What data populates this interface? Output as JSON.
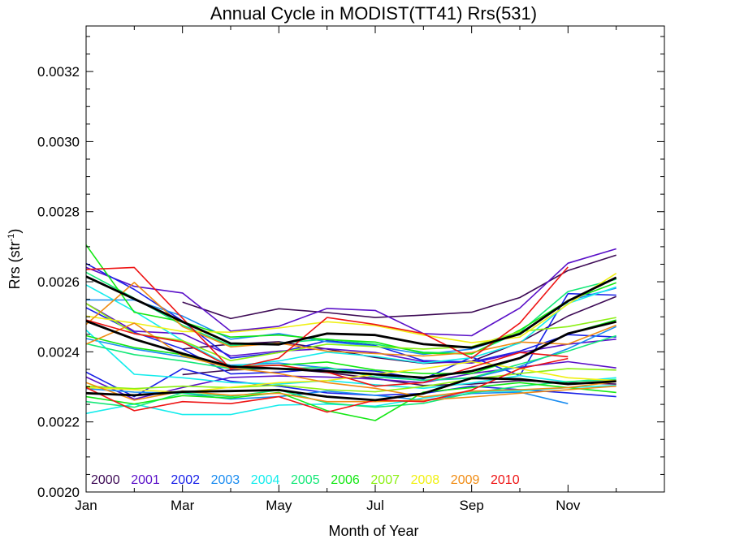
{
  "chart_data": {
    "type": "line",
    "title": "Annual Cycle in MODIST(TT41) Rrs(531)",
    "xlabel": "Month of Year",
    "ylabel": "Rrs (str",
    "ylabel_sup": "-1",
    "ylabel_end": ")",
    "xlim": [
      1,
      13
    ],
    "ylim": [
      0.002,
      0.00333
    ],
    "x_ticks": [
      {
        "v": 1,
        "label": "Jan"
      },
      {
        "v": 3,
        "label": "Mar"
      },
      {
        "v": 5,
        "label": "May"
      },
      {
        "v": 7,
        "label": "Jul"
      },
      {
        "v": 9,
        "label": "Sep"
      },
      {
        "v": 11,
        "label": "Nov"
      }
    ],
    "y_ticks": [
      {
        "v": 0.002,
        "label": "0.0020"
      },
      {
        "v": 0.0022,
        "label": "0.0022"
      },
      {
        "v": 0.0024,
        "label": "0.0024"
      },
      {
        "v": 0.0026,
        "label": "0.0026"
      },
      {
        "v": 0.0028,
        "label": "0.0028"
      },
      {
        "v": 0.003,
        "label": "0.0030"
      },
      {
        "v": 0.0032,
        "label": "0.0032"
      }
    ],
    "legend_placement": "bottom-left",
    "legend": [
      {
        "label": "2000",
        "color": "#3d0a55"
      },
      {
        "label": "2001",
        "color": "#5a10c8"
      },
      {
        "label": "2002",
        "color": "#1a22e8"
      },
      {
        "label": "2003",
        "color": "#1a8cf0"
      },
      {
        "label": "2004",
        "color": "#14ecec"
      },
      {
        "label": "2005",
        "color": "#14e878"
      },
      {
        "label": "2006",
        "color": "#14e814"
      },
      {
        "label": "2007",
        "color": "#8cf014"
      },
      {
        "label": "2008",
        "color": "#f0f014"
      },
      {
        "label": "2009",
        "color": "#f08c14"
      },
      {
        "label": "2010",
        "color": "#ee1414"
      }
    ],
    "series": [
      {
        "color": "#3d0a55",
        "x": [
          3,
          4,
          5,
          6,
          7,
          8,
          9,
          10,
          11,
          12
        ],
        "values": [
          0.002542,
          0.002495,
          0.002523,
          0.002512,
          0.002498,
          0.002505,
          0.002513,
          0.002555,
          0.002632,
          0.002676
        ]
      },
      {
        "color": "#3d0a55",
        "x": [
          3,
          4,
          5,
          6,
          7,
          8,
          9,
          10,
          11,
          12
        ],
        "values": [
          0.002408,
          0.002422,
          0.002429,
          0.002408,
          0.002384,
          0.002367,
          0.002373,
          0.002427,
          0.002502,
          0.002558
        ]
      },
      {
        "color": "#3d0a55",
        "x": [
          3,
          4,
          5,
          6,
          7,
          8,
          9,
          10,
          11,
          12
        ],
        "values": [
          0.002335,
          0.002348,
          0.002353,
          0.002341,
          0.002324,
          0.002304,
          0.002308,
          0.002318,
          0.002312,
          0.002308
        ]
      },
      {
        "color": "#5a10c8",
        "x": [
          1,
          2,
          3,
          4,
          5,
          6,
          7,
          8,
          9,
          10,
          11,
          12
        ],
        "values": [
          0.002641,
          0.002587,
          0.002568,
          0.002459,
          0.002473,
          0.002524,
          0.002518,
          0.002452,
          0.002446,
          0.002525,
          0.002653,
          0.002694
        ]
      },
      {
        "color": "#5a10c8",
        "x": [
          1,
          2,
          3,
          4,
          5,
          6,
          7,
          8,
          9,
          10,
          11,
          12
        ],
        "values": [
          0.002538,
          0.002459,
          0.002452,
          0.002388,
          0.002402,
          0.002409,
          0.002398,
          0.002372,
          0.002368,
          0.002398,
          0.002422,
          0.002436
        ]
      },
      {
        "color": "#5a10c8",
        "x": [
          1,
          2,
          3,
          4,
          5,
          6,
          7,
          8,
          9,
          10,
          11,
          12
        ],
        "values": [
          0.002328,
          0.002265,
          0.002298,
          0.002327,
          0.002331,
          0.002328,
          0.002322,
          0.002312,
          0.002338,
          0.002356,
          0.002372,
          0.002354
        ]
      },
      {
        "color": "#1a22e8",
        "x": [
          1,
          2,
          3,
          4,
          5,
          6,
          7,
          8,
          9,
          10,
          11,
          12
        ],
        "values": [
          0.002652,
          0.002578,
          0.002488,
          0.002382,
          0.002398,
          0.002432,
          0.002418,
          0.002375,
          0.002371,
          0.002402,
          0.002449,
          0.002442
        ]
      },
      {
        "color": "#1a22e8",
        "x": [
          1,
          2,
          3,
          4,
          5,
          6,
          7,
          8,
          9,
          10,
          11,
          12
        ],
        "values": [
          0.002526,
          0.002456,
          0.002408,
          0.002337,
          0.002342,
          0.002352,
          0.002345,
          0.002322,
          0.002385,
          0.002332,
          0.002566,
          0.002562
        ]
      },
      {
        "color": "#1a22e8",
        "x": [
          1,
          2,
          3,
          4,
          5,
          6,
          7,
          8,
          9,
          10,
          11,
          12
        ],
        "values": [
          0.002342,
          0.002272,
          0.002352,
          0.002316,
          0.002302,
          0.002283,
          0.002276,
          0.002281,
          0.002302,
          0.002292,
          0.002283,
          0.002272
        ]
      },
      {
        "color": "#1a8cf0",
        "x": [
          1,
          2,
          3,
          4,
          5,
          6,
          7,
          8,
          9,
          10,
          11,
          12
        ],
        "values": [
          0.002548,
          0.002548,
          0.002502,
          0.002436,
          0.002452,
          0.002429,
          0.002416,
          0.002393,
          0.002408,
          0.002452,
          0.002546,
          0.002582
        ]
      },
      {
        "color": "#1a8cf0",
        "x": [
          1,
          2,
          3,
          4,
          5,
          6,
          7,
          8,
          9,
          10,
          11,
          12
        ],
        "values": [
          0.002438,
          0.002408,
          0.002386,
          0.002362,
          0.002368,
          0.002354,
          0.002334,
          0.002318,
          0.002325,
          0.002358,
          0.002409,
          0.002472
        ]
      },
      {
        "color": "#1a8cf0",
        "x": [
          1,
          2,
          3,
          4,
          5,
          6,
          7,
          8,
          9,
          10,
          11
        ],
        "values": [
          0.002295,
          0.002285,
          0.002282,
          0.002265,
          0.002272,
          0.002288,
          0.002276,
          0.002262,
          0.002281,
          0.002285,
          0.002252
        ]
      },
      {
        "color": "#14ecec",
        "x": [
          1,
          2,
          3,
          4,
          5,
          6,
          7,
          8,
          9,
          10,
          11,
          12
        ],
        "values": [
          0.002591,
          0.002516,
          0.002432,
          0.002359,
          0.002374,
          0.002399,
          0.002387,
          0.002368,
          0.002383,
          0.002425,
          0.002538,
          0.002585
        ]
      },
      {
        "color": "#14ecec",
        "x": [
          1,
          2,
          3,
          4,
          5,
          6,
          7,
          8,
          9,
          10,
          11,
          12
        ],
        "values": [
          0.002462,
          0.002336,
          0.002326,
          0.002312,
          0.002308,
          0.002318,
          0.002306,
          0.002296,
          0.002311,
          0.002332,
          0.002314,
          0.002326
        ]
      },
      {
        "color": "#14ecec",
        "x": [
          1,
          2,
          3,
          4,
          5,
          6,
          7,
          8,
          9,
          10,
          11,
          12
        ],
        "values": [
          0.002224,
          0.002251,
          0.002221,
          0.002221,
          0.002248,
          0.002251,
          0.002245,
          0.002268,
          0.002286,
          0.002288,
          0.002298,
          0.002304
        ]
      },
      {
        "color": "#14e878",
        "x": [
          1,
          2,
          3,
          4,
          5,
          6,
          7,
          8,
          9,
          10,
          11,
          12
        ],
        "values": [
          0.002627,
          0.002553,
          0.002476,
          0.002418,
          0.002425,
          0.002436,
          0.002422,
          0.002399,
          0.002395,
          0.002456,
          0.002572,
          0.002607
        ]
      },
      {
        "color": "#14e878",
        "x": [
          1,
          2,
          3,
          4,
          5,
          6,
          7,
          8,
          9,
          10,
          11,
          12
        ],
        "values": [
          0.002423,
          0.002392,
          0.002374,
          0.002352,
          0.002352,
          0.002356,
          0.002328,
          0.002319,
          0.002326,
          0.002365,
          0.002402,
          0.002446
        ]
      },
      {
        "color": "#14e878",
        "x": [
          1,
          2,
          3,
          4,
          5,
          6,
          7,
          8,
          9,
          10,
          11,
          12
        ],
        "values": [
          0.002258,
          0.002242,
          0.002283,
          0.002272,
          0.002291,
          0.002254,
          0.002242,
          0.002253,
          0.002283,
          0.002302,
          0.002315,
          0.002321
        ]
      },
      {
        "color": "#14e814",
        "x": [
          1,
          2,
          3,
          4,
          5,
          6,
          7,
          8,
          9,
          10,
          11,
          12
        ],
        "values": [
          0.002705,
          0.002513,
          0.002486,
          0.002442,
          0.002448,
          0.002435,
          0.002428,
          0.002396,
          0.002394,
          0.002462,
          0.002546,
          0.002597
        ]
      },
      {
        "color": "#14e814",
        "x": [
          1,
          2,
          3,
          4,
          5,
          6,
          7,
          8,
          9,
          10,
          11,
          12
        ],
        "values": [
          0.002446,
          0.002412,
          0.002392,
          0.002358,
          0.002362,
          0.002371,
          0.002348,
          0.002338,
          0.002338,
          0.002382,
          0.002452,
          0.002491
        ]
      },
      {
        "color": "#14e814",
        "x": [
          1,
          2,
          3,
          4,
          5,
          6,
          7,
          8,
          9,
          10,
          11,
          12
        ],
        "values": [
          0.002272,
          0.002251,
          0.002275,
          0.002268,
          0.002284,
          0.002232,
          0.002204,
          0.002285,
          0.002298,
          0.002312,
          0.002298,
          0.002284
        ]
      },
      {
        "color": "#8cf014",
        "x": [
          1,
          2,
          3,
          4,
          5,
          6,
          7,
          8,
          9,
          10,
          11,
          12
        ],
        "values": [
          0.002538,
          0.002452,
          0.002432,
          0.002375,
          0.002398,
          0.002422,
          0.002415,
          0.002408,
          0.002415,
          0.002458,
          0.002472,
          0.002498
        ]
      },
      {
        "color": "#8cf014",
        "x": [
          1,
          2,
          3,
          4,
          5,
          6,
          7,
          8,
          9,
          10,
          11,
          12
        ],
        "values": [
          0.002302,
          0.002295,
          0.002302,
          0.002298,
          0.002305,
          0.002292,
          0.002286,
          0.002301,
          0.002322,
          0.002338,
          0.002352,
          0.002348
        ]
      },
      {
        "color": "#f0f014",
        "x": [
          1,
          2,
          3,
          4,
          5,
          6,
          7,
          8,
          9,
          10,
          11,
          12
        ],
        "values": [
          0.002502,
          0.002482,
          0.002458,
          0.002456,
          0.002468,
          0.002486,
          0.002475,
          0.002448,
          0.002426,
          0.002442,
          0.002536,
          0.002624
        ]
      },
      {
        "color": "#f0f014",
        "x": [
          1,
          2,
          3,
          4,
          5,
          6,
          7,
          8,
          9,
          10,
          11,
          12
        ],
        "values": [
          0.002298,
          0.002292,
          0.002284,
          0.002299,
          0.002312,
          0.002318,
          0.002336,
          0.002352,
          0.002372,
          0.002352,
          0.002326,
          0.002318
        ]
      },
      {
        "color": "#f08c14",
        "x": [
          1,
          2,
          3,
          4,
          5,
          6,
          7,
          8,
          9,
          10,
          11,
          12
        ],
        "values": [
          0.002478,
          0.002598,
          0.002472,
          0.002414,
          0.002425,
          0.002402,
          0.002395,
          0.002388,
          0.002398,
          0.002428,
          0.002422,
          0.002476
        ]
      },
      {
        "color": "#f08c14",
        "x": [
          1,
          2,
          3,
          4,
          5,
          6,
          7,
          8,
          9,
          10,
          11,
          12
        ],
        "values": [
          0.002422,
          0.002482,
          0.002388,
          0.002354,
          0.002338,
          0.002312,
          0.002296,
          0.002271,
          0.002288,
          0.002292,
          0.002298,
          0.002315
        ]
      },
      {
        "color": "#f08c14",
        "x": [
          1,
          2,
          3,
          4,
          5,
          6,
          7,
          8,
          9,
          10,
          11,
          12
        ],
        "values": [
          0.002312,
          0.002262,
          0.002288,
          0.002276,
          0.002282,
          0.002258,
          0.002258,
          0.002262,
          0.002271,
          0.002282,
          0.002292,
          0.002302
        ]
      },
      {
        "color": "#ee1414",
        "x": [
          1,
          2,
          3,
          4,
          5,
          6,
          7,
          8,
          9,
          10,
          11
        ],
        "values": [
          0.002635,
          0.002641,
          0.002496,
          0.002351,
          0.002382,
          0.002498,
          0.002478,
          0.002452,
          0.002382,
          0.002482,
          0.002642
        ]
      },
      {
        "color": "#ee1414",
        "x": [
          1,
          2,
          3,
          4,
          5,
          6,
          7,
          8,
          9,
          10,
          11
        ],
        "values": [
          0.002491,
          0.002452,
          0.002428,
          0.002356,
          0.002362,
          0.002342,
          0.002302,
          0.002312,
          0.002356,
          0.002398,
          0.002386
        ]
      },
      {
        "color": "#ee1414",
        "x": [
          1,
          2,
          3,
          4,
          5,
          6,
          7,
          8,
          9,
          10,
          11
        ],
        "values": [
          0.002298,
          0.002232,
          0.002258,
          0.002252,
          0.002272,
          0.002228,
          0.002262,
          0.002258,
          0.002291,
          0.002352,
          0.002381
        ]
      },
      {
        "color": "#000000",
        "bold": true,
        "x": [
          1,
          2,
          3,
          4,
          5,
          6,
          7,
          8,
          9,
          10,
          11,
          12
        ],
        "values": [
          0.002615,
          0.002551,
          0.002486,
          0.002424,
          0.002421,
          0.002452,
          0.002448,
          0.002422,
          0.002412,
          0.002451,
          0.002545,
          0.002612
        ]
      },
      {
        "color": "#000000",
        "bold": true,
        "x": [
          1,
          2,
          3,
          4,
          5,
          6,
          7,
          8,
          9,
          10,
          11,
          12
        ],
        "values": [
          0.002488,
          0.002436,
          0.002395,
          0.002358,
          0.002352,
          0.002345,
          0.002336,
          0.002326,
          0.002345,
          0.002382,
          0.002452,
          0.002486
        ]
      },
      {
        "color": "#000000",
        "bold": true,
        "x": [
          1,
          2,
          3,
          4,
          5,
          6,
          7,
          8,
          9,
          10,
          11,
          12
        ],
        "values": [
          0.002282,
          0.002276,
          0.002286,
          0.002288,
          0.002291,
          0.002272,
          0.002262,
          0.002281,
          0.002325,
          0.002322,
          0.002308,
          0.002316
        ]
      }
    ]
  }
}
